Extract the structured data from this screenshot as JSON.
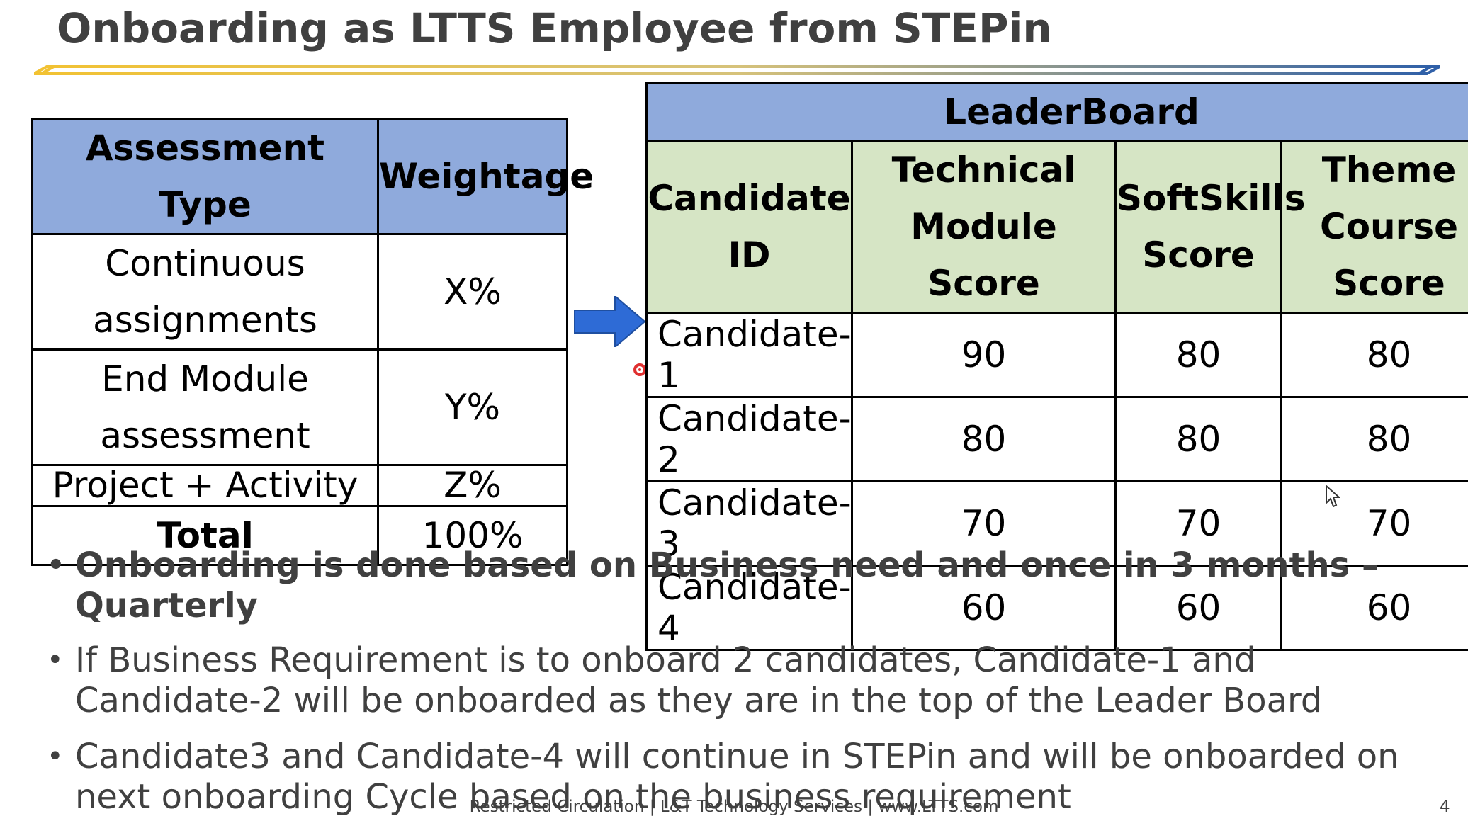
{
  "slide": {
    "title": "Onboarding as LTTS Employee from STEPin",
    "footer": "Restricted Circulation | L&T Technology Services | www.LTTS.com",
    "page_number": "4"
  },
  "assessment_table": {
    "headers": [
      "Assessment Type",
      "Weightage"
    ],
    "rows": [
      {
        "type": "Continuous assignments",
        "weight": "X%"
      },
      {
        "type": "End Module assessment",
        "weight": "Y%"
      },
      {
        "type": "Project + Activity",
        "weight": "Z%"
      },
      {
        "type": "Total",
        "weight": "100%"
      }
    ]
  },
  "leaderboard": {
    "title": "LeaderBoard",
    "headers": [
      "Candidate ID",
      "Technical Module Score",
      "SoftSkills Score",
      "Theme Course Score"
    ],
    "rows": [
      {
        "id": "Candidate-1",
        "technical": "90",
        "softskills": "80",
        "theme": "80"
      },
      {
        "id": "Candidate-2",
        "technical": "80",
        "softskills": "80",
        "theme": "80"
      },
      {
        "id": "Candidate-3",
        "technical": "70",
        "softskills": "70",
        "theme": "70"
      },
      {
        "id": "Candidate-4",
        "technical": "60",
        "softskills": "60",
        "theme": "60"
      }
    ]
  },
  "bullets": [
    "Onboarding is done based on Business need and once in 3 months – Quarterly",
    "If Business Requirement is to onboard 2 candidates, Candidate-1 and Candidate-2 will be onboarded as they are in the top of the Leader Board",
    "Candidate3 and Candidate-4 will continue in STEPin and will be onboarded on next onboarding Cycle based on the business requirement"
  ],
  "icons": {
    "arrow": "right-arrow-icon",
    "cursor": "mouse-cursor-icon",
    "pointer": "laser-pointer-icon"
  },
  "colors": {
    "header_blue": "#8faadc",
    "header_green": "#d6e5c5",
    "title_gray": "#404040",
    "accent_gold": "#f2c232",
    "accent_blue": "#2e5fa8"
  }
}
